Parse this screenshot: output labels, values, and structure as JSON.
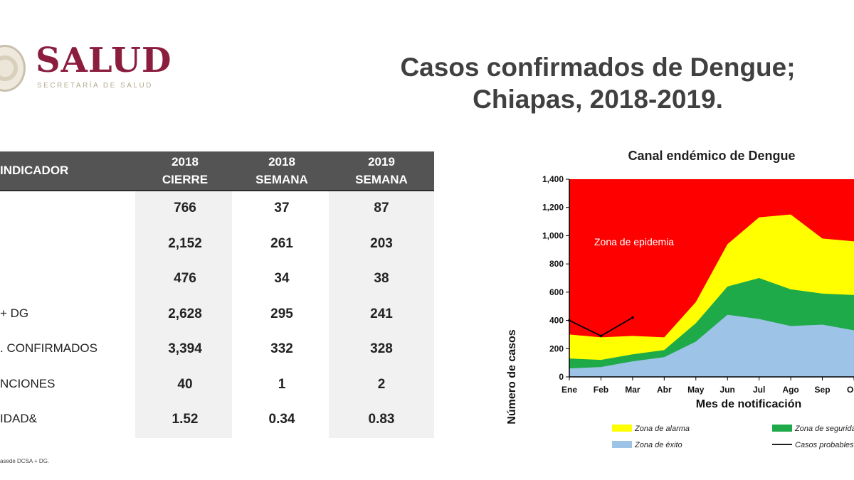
{
  "logo": {
    "wordmark": "SALUD",
    "subtitle": "SECRETARÍA DE SALUD"
  },
  "title_line1": "Casos confirmados de Dengue;",
  "title_line2": "Chiapas, 2018-2019.",
  "table": {
    "header": {
      "indicator": "INDICADOR",
      "col1_line1": "2018",
      "col1_line2": "CIERRE",
      "col2_line1": "2018",
      "col2_line2": "SEMANA",
      "col3_line1": "2019",
      "col3_line2": "SEMANA"
    },
    "rows": [
      {
        "label": "",
        "values": [
          "766",
          "37",
          "87"
        ]
      },
      {
        "label": "",
        "values": [
          "2,152",
          "261",
          "203"
        ]
      },
      {
        "label": "",
        "values": [
          "476",
          "34",
          "38"
        ]
      },
      {
        "label": "+ DG",
        "values": [
          "2,628",
          "295",
          "241"
        ]
      },
      {
        "label": ". CONFIRMADOS",
        "values": [
          "3,394",
          "332",
          "328"
        ]
      },
      {
        "label": "NCIONES",
        "values": [
          "40",
          "1",
          "2"
        ]
      },
      {
        "label": "IDAD&",
        "values": [
          "1.52",
          "0.34",
          "0.83"
        ]
      }
    ],
    "footnote": "asede DCSA + DG."
  },
  "chart_data": {
    "type": "area",
    "title": "Canal endémico de Dengue",
    "xlabel": "Mes de notificación",
    "ylabel": "Número de casos",
    "categories": [
      "Ene",
      "Feb",
      "Mar",
      "Abr",
      "May",
      "Jun",
      "Jul",
      "Ago",
      "Sep",
      "Oct"
    ],
    "y_ticks": [
      "0",
      "200",
      "400",
      "600",
      "800",
      "1,000",
      "1,200",
      "1,400"
    ],
    "ylim": [
      0,
      1400
    ],
    "annotation": "Zona de epidemia",
    "series": [
      {
        "name": "Zona de éxito",
        "color": "#9dc3e6",
        "values": [
          60,
          70,
          110,
          140,
          250,
          440,
          410,
          360,
          370,
          330
        ]
      },
      {
        "name": "Zona de seguridad",
        "color": "#1faa4a",
        "values": [
          130,
          120,
          160,
          190,
          380,
          640,
          700,
          620,
          590,
          580
        ]
      },
      {
        "name": "Zona de alarma",
        "color": "#ffff00",
        "values": [
          300,
          280,
          290,
          280,
          530,
          940,
          1130,
          1150,
          980,
          960
        ]
      },
      {
        "name": "Zona de epidemia",
        "color": "#ff0000",
        "values": [
          1400,
          1400,
          1400,
          1400,
          1400,
          1400,
          1400,
          1400,
          1400,
          1400
        ]
      }
    ],
    "line": {
      "name": "Casos probables",
      "color": "#000000",
      "values": [
        400,
        290,
        420
      ]
    },
    "legend": [
      {
        "label": "Zona de alarma",
        "color": "#ffff00"
      },
      {
        "label": "Zona de seguridad",
        "color": "#1faa4a"
      },
      {
        "label": "Zona de éxito",
        "color": "#9dc3e6"
      },
      {
        "label": "Casos probables",
        "color": "#000000"
      }
    ]
  }
}
